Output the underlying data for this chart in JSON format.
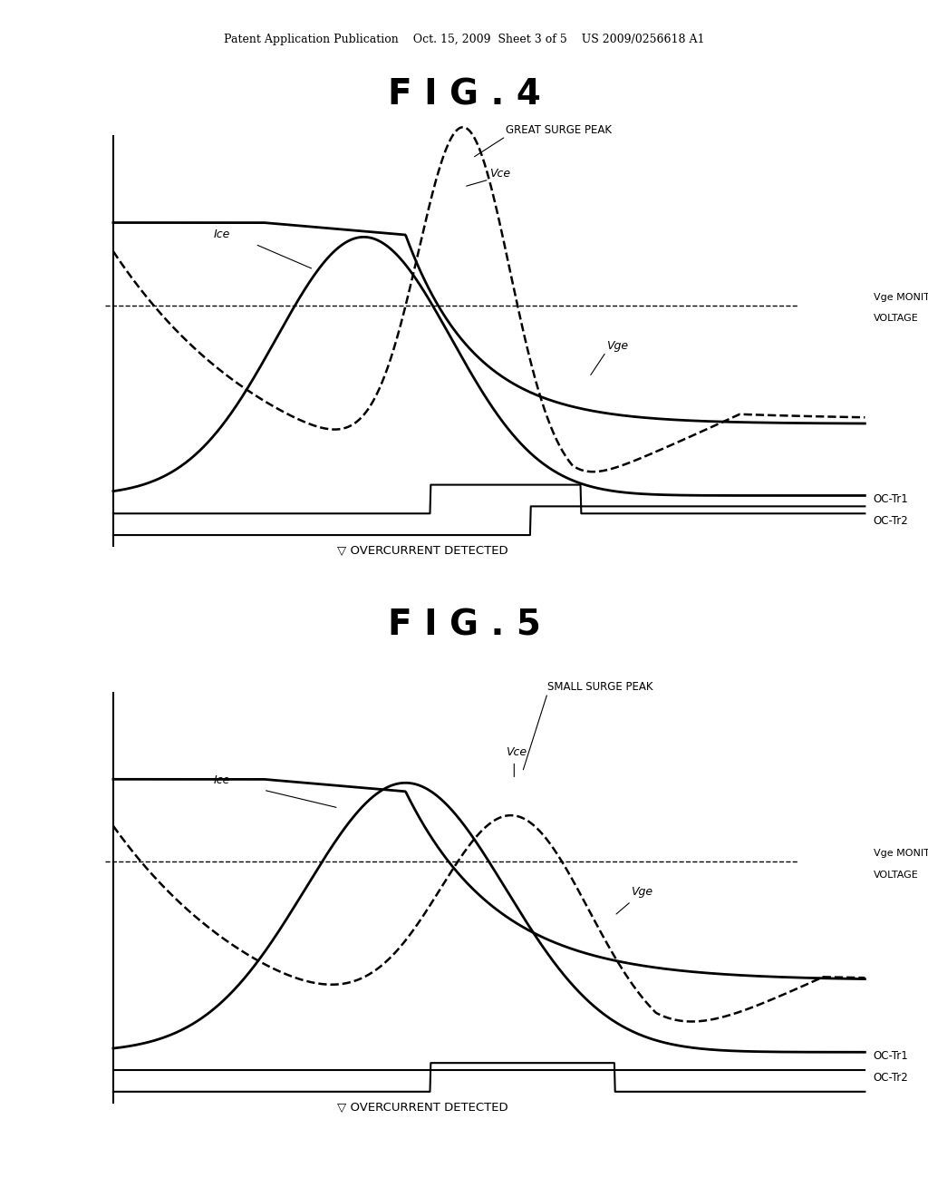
{
  "background_color": "#ffffff",
  "header_text": "Patent Application Publication    Oct. 15, 2009  Sheet 3 of 5    US 2009/0256618 A1",
  "fig4_title": "F I G . 4",
  "fig5_title": "F I G . 5",
  "fig4_surge_label": "GREAT SURGE PEAK",
  "fig5_surge_label": "SMALL SURGE PEAK",
  "monitor_label": "Vge MONITOR\nVOLTAGE",
  "oc_tr1_label": "OC-Tr1",
  "oc_tr2_label": "OC-Tr2",
  "overcurrent_label": "▽ OVERCURRENT DETECTED",
  "ice_label": "Ice",
  "vce_label": "Vce",
  "vge_label": "Vge"
}
